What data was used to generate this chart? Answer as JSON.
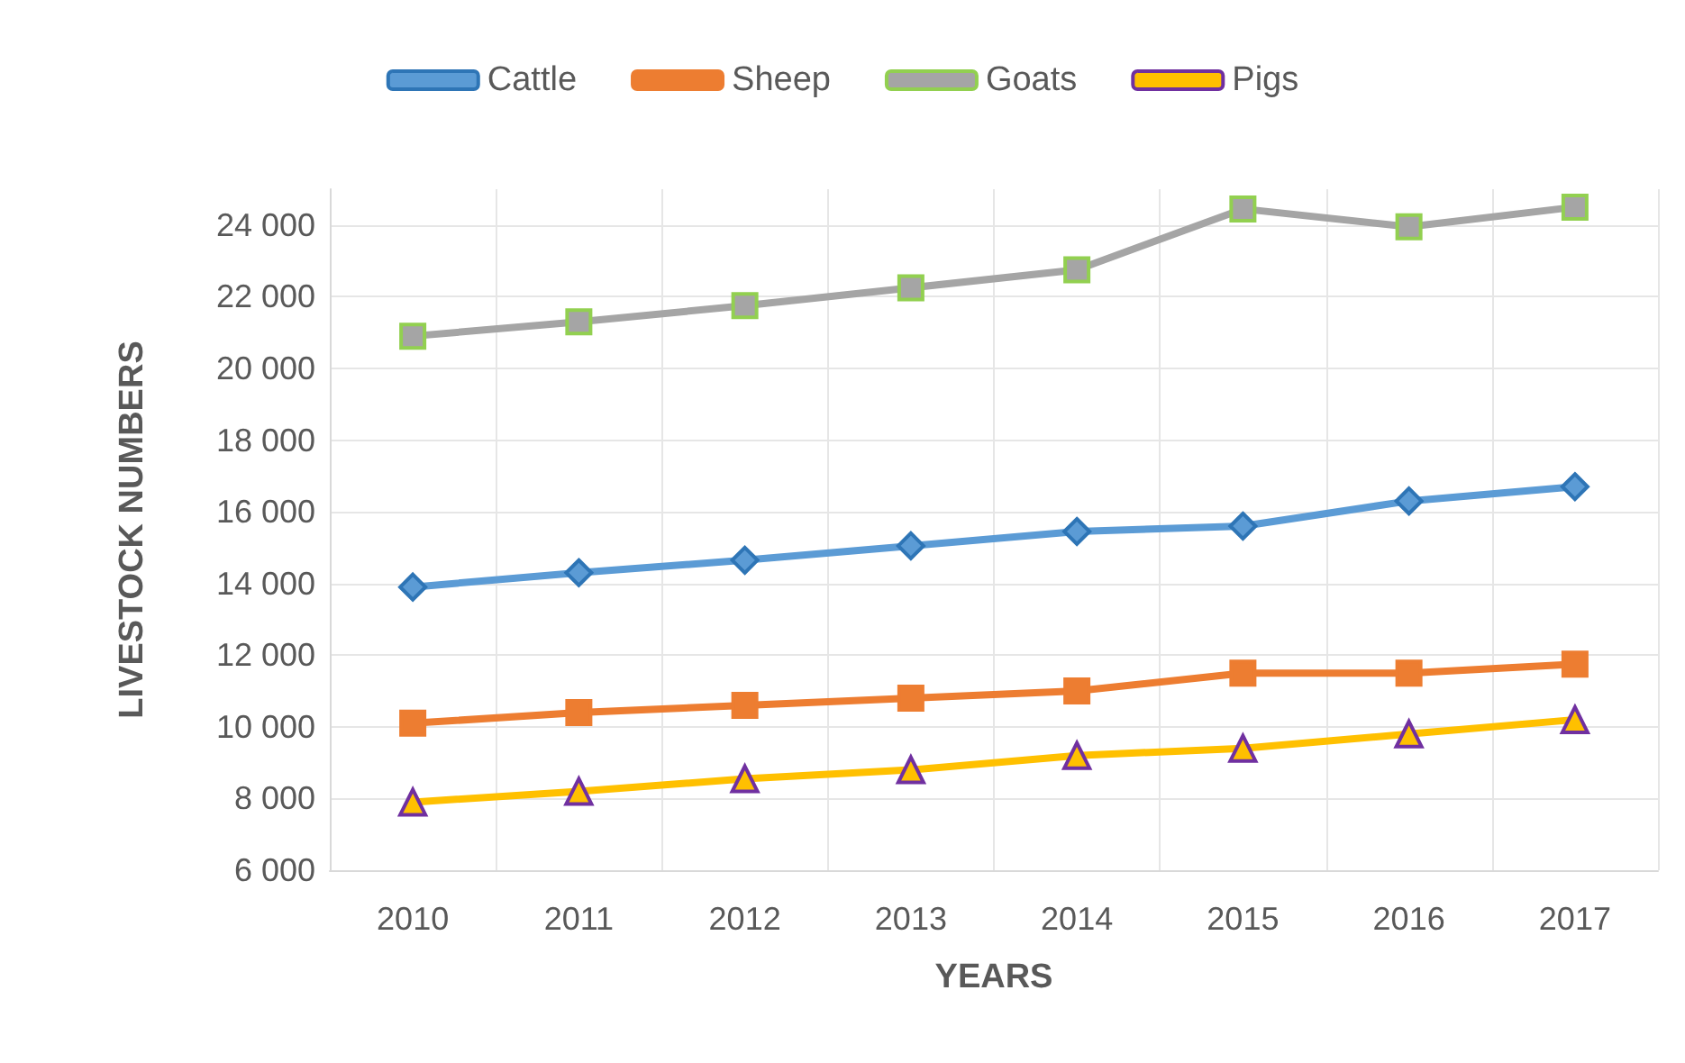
{
  "chart_data": {
    "type": "line",
    "xlabel": "YEARS",
    "ylabel": "LIVESTOCK NUMBERS",
    "categories": [
      "2010",
      "2011",
      "2012",
      "2013",
      "2014",
      "2015",
      "2016",
      "2017"
    ],
    "series": [
      {
        "name": "Cattle",
        "color": "#5b9bd5",
        "marker": "diamond",
        "values": [
          13900,
          14300,
          14650,
          15050,
          15450,
          15600,
          16300,
          16700
        ]
      },
      {
        "name": "Sheep",
        "color": "#ed7d31",
        "marker": "square",
        "values": [
          10100,
          10400,
          10600,
          10800,
          11000,
          11500,
          11500,
          11750
        ]
      },
      {
        "name": "Goats",
        "color": "#a5a5a5",
        "marker": "square",
        "values": [
          20900,
          21300,
          21750,
          22250,
          22750,
          24450,
          23950,
          24500
        ]
      },
      {
        "name": "Pigs",
        "color": "#ffc000",
        "marker": "triangle",
        "values": [
          7900,
          8200,
          8550,
          8800,
          9200,
          9400,
          9800,
          10200
        ]
      }
    ],
    "ylim": [
      6000,
      25000
    ],
    "yticks": [
      {
        "value": 6000,
        "label": "6 000"
      },
      {
        "value": 8000,
        "label": "8 000"
      },
      {
        "value": 10000,
        "label": "10 000"
      },
      {
        "value": 12000,
        "label": "12 000"
      },
      {
        "value": 14000,
        "label": "14 000"
      },
      {
        "value": 16000,
        "label": "16 000"
      },
      {
        "value": 18000,
        "label": "18 000"
      },
      {
        "value": 20000,
        "label": "20 000"
      },
      {
        "value": 22000,
        "label": "22 000"
      },
      {
        "value": 24000,
        "label": "24 000"
      }
    ],
    "grid": true,
    "legend": "top",
    "line_style": "solid"
  }
}
